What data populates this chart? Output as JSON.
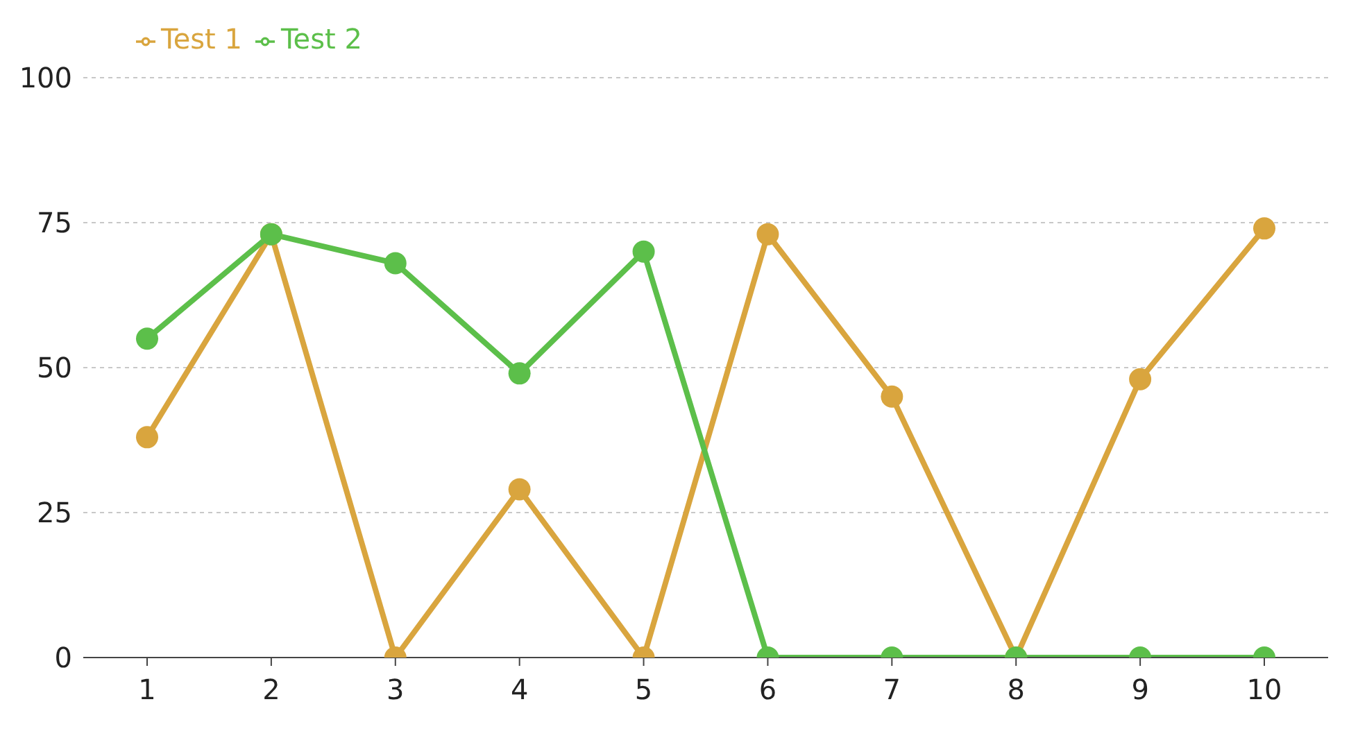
{
  "chart_data": {
    "type": "line",
    "categories": [
      "1",
      "2",
      "3",
      "4",
      "5",
      "6",
      "7",
      "8",
      "9",
      "10"
    ],
    "series": [
      {
        "name": "Test 1",
        "color": "#d9a53e",
        "values": [
          38,
          73,
          0,
          29,
          0,
          73,
          45,
          0,
          48,
          74
        ]
      },
      {
        "name": "Test 2",
        "color": "#5cbf4a",
        "values": [
          55,
          73,
          68,
          49,
          70,
          0,
          0,
          0,
          0,
          0
        ]
      }
    ],
    "ylim": [
      0,
      100
    ],
    "yticks": [
      0,
      25,
      50,
      75,
      100
    ],
    "grid": "y",
    "legend": "top left",
    "marker": "circle",
    "line_style": "solid"
  }
}
